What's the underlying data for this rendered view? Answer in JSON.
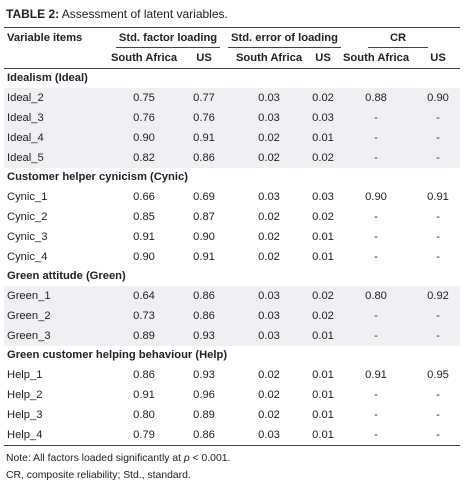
{
  "caption": {
    "label": "TABLE 2:",
    "text": " Assessment of latent variables."
  },
  "headers": {
    "variable_items": "Variable items",
    "std_factor_loading": "Std. factor loading",
    "std_error_loading": "Std. error of loading",
    "cr": "CR",
    "south_africa": "South Africa",
    "us": "US"
  },
  "sections": [
    {
      "title": "Idealism (Ideal)",
      "rows": [
        {
          "item": "Ideal_2",
          "sfl_sa": "0.75",
          "sfl_us": "0.77",
          "se_sa": "0.03",
          "se_us": "0.02",
          "cr_sa": "0.88",
          "cr_us": "0.90"
        },
        {
          "item": "Ideal_3",
          "sfl_sa": "0.76",
          "sfl_us": "0.76",
          "se_sa": "0.03",
          "se_us": "0.03",
          "cr_sa": "-",
          "cr_us": "-"
        },
        {
          "item": "Ideal_4",
          "sfl_sa": "0.90",
          "sfl_us": "0.91",
          "se_sa": "0.02",
          "se_us": "0.01",
          "cr_sa": "-",
          "cr_us": "-"
        },
        {
          "item": "Ideal_5",
          "sfl_sa": "0.82",
          "sfl_us": "0.86",
          "se_sa": "0.02",
          "se_us": "0.02",
          "cr_sa": "-",
          "cr_us": "-"
        }
      ]
    },
    {
      "title": "Customer helper cynicism (Cynic)",
      "rows": [
        {
          "item": "Cynic_1",
          "sfl_sa": "0.66",
          "sfl_us": "0.69",
          "se_sa": "0.03",
          "se_us": "0.03",
          "cr_sa": "0.90",
          "cr_us": "0.91"
        },
        {
          "item": "Cynic_2",
          "sfl_sa": "0.85",
          "sfl_us": "0.87",
          "se_sa": "0.02",
          "se_us": "0.02",
          "cr_sa": "-",
          "cr_us": "-"
        },
        {
          "item": "Cynic_3",
          "sfl_sa": "0.91",
          "sfl_us": "0.90",
          "se_sa": "0.02",
          "se_us": "0.01",
          "cr_sa": "-",
          "cr_us": "-"
        },
        {
          "item": "Cynic_4",
          "sfl_sa": "0.90",
          "sfl_us": "0.91",
          "se_sa": "0.02",
          "se_us": "0.01",
          "cr_sa": "-",
          "cr_us": "-"
        }
      ]
    },
    {
      "title": "Green attitude (Green)",
      "rows": [
        {
          "item": "Green_1",
          "sfl_sa": "0.64",
          "sfl_us": "0.86",
          "se_sa": "0.03",
          "se_us": "0.02",
          "cr_sa": "0.80",
          "cr_us": "0.92"
        },
        {
          "item": "Green_2",
          "sfl_sa": "0.73",
          "sfl_us": "0.86",
          "se_sa": "0.03",
          "se_us": "0.02",
          "cr_sa": "-",
          "cr_us": "-"
        },
        {
          "item": "Green_3",
          "sfl_sa": "0.89",
          "sfl_us": "0.93",
          "se_sa": "0.03",
          "se_us": "0.01",
          "cr_sa": "-",
          "cr_us": "-"
        }
      ]
    },
    {
      "title": "Green customer helping behaviour (Help)",
      "rows": [
        {
          "item": "Help_1",
          "sfl_sa": "0.86",
          "sfl_us": "0.93",
          "se_sa": "0.02",
          "se_us": "0.01",
          "cr_sa": "0.91",
          "cr_us": "0.95"
        },
        {
          "item": "Help_2",
          "sfl_sa": "0.91",
          "sfl_us": "0.96",
          "se_sa": "0.02",
          "se_us": "0.01",
          "cr_sa": "-",
          "cr_us": "-"
        },
        {
          "item": "Help_3",
          "sfl_sa": "0.80",
          "sfl_us": "0.89",
          "se_sa": "0.02",
          "se_us": "0.01",
          "cr_sa": "-",
          "cr_us": "-"
        },
        {
          "item": "Help_4",
          "sfl_sa": "0.79",
          "sfl_us": "0.86",
          "se_sa": "0.03",
          "se_us": "0.01",
          "cr_sa": "-",
          "cr_us": "-"
        }
      ]
    }
  ],
  "notes": {
    "line1_prefix": "Note: All factors loaded significantly at ",
    "line1_var": "p",
    "line1_suffix": " < 0.001.",
    "line2": "CR, composite reliability; Std., standard."
  },
  "colors": {
    "shade": "#eef0f3",
    "rule": "#444444",
    "text": "#222222"
  }
}
